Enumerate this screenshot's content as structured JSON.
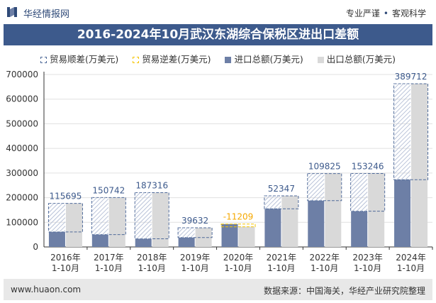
{
  "header": {
    "logo_text": "华经情报网",
    "slogan_left": "专业严谨",
    "slogan_dot": "•",
    "slogan_right": "客观科学"
  },
  "chart_data": {
    "type": "bar",
    "title": "2016-2024年10月武汉东湖综合保税区进出口差额",
    "categories": [
      "2016年\n1-10月",
      "2017年\n1-10月",
      "2018年\n1-10月",
      "2019年\n1-10月",
      "2020年\n1-10月",
      "2021年\n1-10月",
      "2022年\n1-10月",
      "2023年\n1-10月",
      "2024年\n1-10月"
    ],
    "legend": [
      "贸易顺差(万美元)",
      "贸易逆差(万美元)",
      "进口总额(万美元)",
      "出口总额(万美元)"
    ],
    "series": [
      {
        "name": "进口总额(万美元)",
        "values": [
          61000,
          50000,
          33000,
          38000,
          93000,
          155000,
          188000,
          145000,
          273000
        ]
      },
      {
        "name": "出口总额(万美元)",
        "values": [
          176695,
          200742,
          220316,
          77632,
          81791,
          207347,
          297825,
          298246,
          662712
        ]
      }
    ],
    "balance": [
      115695,
      150742,
      187316,
      39632,
      -11209,
      52347,
      109825,
      153246,
      389712
    ],
    "balance_labels": [
      "115695",
      "150742",
      "187316",
      "39632",
      "-11209",
      "52347",
      "109825",
      "153246",
      "389712"
    ],
    "ylim": [
      0,
      700000
    ],
    "yticks": [
      0,
      100000,
      200000,
      300000,
      400000,
      500000,
      600000,
      700000
    ],
    "ytick_labels": [
      "0",
      "100000",
      "200000",
      "300000",
      "400000",
      "500000",
      "600000",
      "700000"
    ],
    "colors": {
      "import": "#6d7fa6",
      "export": "#d9d9d9",
      "surplus_border": "#4f6a99",
      "deficit_border": "#f5c400",
      "surplus_label": "#3d5a8c",
      "deficit_label": "#f5a800",
      "grid": "#e0e0e0",
      "axis": "#333333"
    }
  },
  "footer": {
    "website": "www.huaon.com",
    "source": "数据来源：中国海关，华经产业研究院整理"
  }
}
